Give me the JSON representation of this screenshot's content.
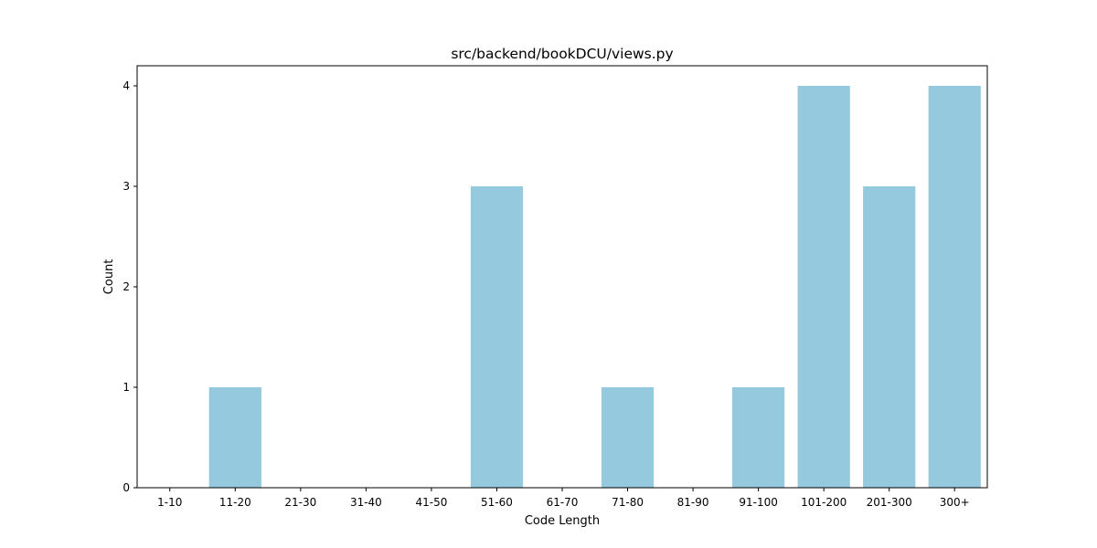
{
  "chart_data": {
    "type": "bar",
    "title": "src/backend/bookDCU/views.py",
    "xlabel": "Code Length",
    "ylabel": "Count",
    "categories": [
      "1-10",
      "11-20",
      "21-30",
      "31-40",
      "41-50",
      "51-60",
      "61-70",
      "71-80",
      "81-90",
      "91-100",
      "101-200",
      "201-300",
      "300+"
    ],
    "values": [
      0,
      1,
      0,
      0,
      0,
      3,
      0,
      1,
      0,
      1,
      4,
      3,
      4
    ],
    "ylim": [
      0,
      4.2
    ],
    "yticks": [
      "0",
      "1",
      "2",
      "3",
      "4"
    ],
    "grid": false,
    "colors": {
      "bar": "#95c9de",
      "axis": "#000000"
    }
  }
}
